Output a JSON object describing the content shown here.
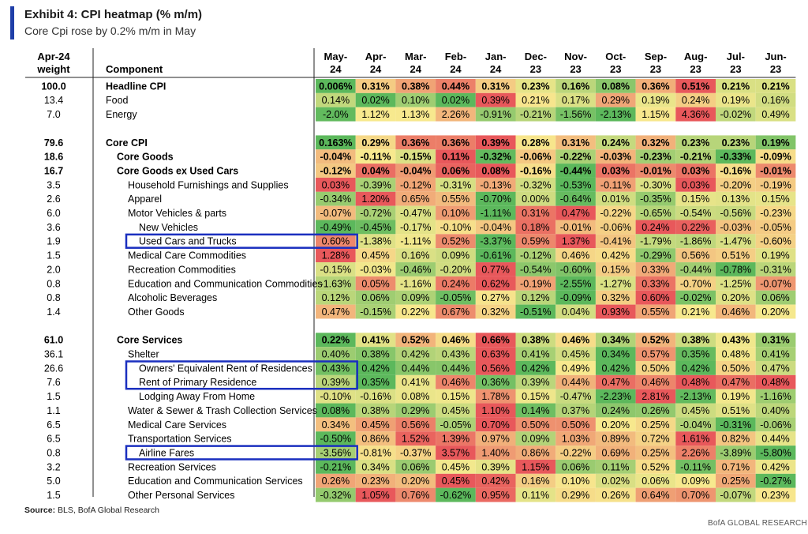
{
  "title": "Exhibit 4: CPI heatmap (% m/m)",
  "subtitle": "Core Cpi rose by 0.2% m/m in May",
  "source_label": "Source:",
  "source_text": "BLS, BofA Global Research",
  "footer": "BofA GLOBAL RESEARCH",
  "headers": {
    "weight_line1": "Apr-24",
    "weight_line2": "weight",
    "component": "Component",
    "months": [
      [
        "May-",
        "24"
      ],
      [
        "Apr-",
        "24"
      ],
      [
        "Mar-",
        "24"
      ],
      [
        "Feb-",
        "24"
      ],
      [
        "Jan-",
        "24"
      ],
      [
        "Dec-",
        "23"
      ],
      [
        "Nov-",
        "23"
      ],
      [
        "Oct-",
        "23"
      ],
      [
        "Sep-",
        "23"
      ],
      [
        "Aug-",
        "23"
      ],
      [
        "Jul-",
        "23"
      ],
      [
        "Jun-",
        "23"
      ]
    ]
  },
  "colors": {
    "low": "#5cb85c",
    "mid": "#f7e98e",
    "high": "#e8585b",
    "highlight_box": "#1a2fbf"
  },
  "chart_data": {
    "type": "heatmap",
    "title": "Exhibit 4: CPI heatmap (% m/m)",
    "subtitle": "Core Cpi rose by 0.2% m/m in May",
    "x": [
      "May-24",
      "Apr-24",
      "Mar-24",
      "Feb-24",
      "Jan-24",
      "Dec-23",
      "Nov-23",
      "Oct-23",
      "Sep-23",
      "Aug-23",
      "Jul-23",
      "Jun-23"
    ],
    "rows": [
      {
        "weight": "100.0",
        "name": "Headline CPI",
        "level": 0,
        "bold": true,
        "values": [
          "0.006%",
          "0.31%",
          "0.38%",
          "0.44%",
          "0.31%",
          "0.23%",
          "0.16%",
          "0.08%",
          "0.36%",
          "0.51%",
          "0.21%",
          "0.21%"
        ]
      },
      {
        "weight": "13.4",
        "name": "Food",
        "level": 0,
        "bold": false,
        "values": [
          "0.14%",
          "0.02%",
          "0.10%",
          "0.02%",
          "0.39%",
          "0.21%",
          "0.17%",
          "0.29%",
          "0.19%",
          "0.24%",
          "0.19%",
          "0.16%"
        ]
      },
      {
        "weight": "7.0",
        "name": "Energy",
        "level": 0,
        "bold": false,
        "values": [
          "-2.0%",
          "1.12%",
          "1.13%",
          "2.26%",
          "-0.91%",
          "-0.21%",
          "-1.56%",
          "-2.13%",
          "1.15%",
          "4.36%",
          "-0.02%",
          "0.49%"
        ]
      },
      {
        "gap": true
      },
      {
        "weight": "79.6",
        "name": "Core CPI",
        "level": 0,
        "bold": true,
        "values": [
          "0.163%",
          "0.29%",
          "0.36%",
          "0.36%",
          "0.39%",
          "0.28%",
          "0.31%",
          "0.24%",
          "0.32%",
          "0.23%",
          "0.23%",
          "0.19%"
        ]
      },
      {
        "weight": "18.6",
        "name": "Core Goods",
        "level": 1,
        "bold": true,
        "values": [
          "-0.04%",
          "-0.11%",
          "-0.15%",
          "0.11%",
          "-0.32%",
          "-0.06%",
          "-0.22%",
          "-0.03%",
          "-0.23%",
          "-0.21%",
          "-0.33%",
          "-0.09%"
        ]
      },
      {
        "weight": "16.7",
        "name": "Core Goods ex Used Cars",
        "level": 1,
        "bold": true,
        "values": [
          "-0.12%",
          "0.04%",
          "-0.04%",
          "0.06%",
          "0.08%",
          "-0.16%",
          "-0.44%",
          "0.03%",
          "-0.01%",
          "0.03%",
          "-0.16%",
          "-0.01%"
        ]
      },
      {
        "weight": "3.5",
        "name": "Household Furnishings and Supplies",
        "level": 2,
        "bold": false,
        "values": [
          "0.03%",
          "-0.39%",
          "-0.12%",
          "-0.31%",
          "-0.13%",
          "-0.32%",
          "-0.53%",
          "-0.11%",
          "-0.30%",
          "0.03%",
          "-0.20%",
          "-0.19%"
        ]
      },
      {
        "weight": "2.6",
        "name": "Apparel",
        "level": 2,
        "bold": false,
        "values": [
          "-0.34%",
          "1.20%",
          "0.65%",
          "0.55%",
          "-0.70%",
          "0.00%",
          "-0.64%",
          "0.01%",
          "-0.35%",
          "0.15%",
          "0.13%",
          "0.15%"
        ]
      },
      {
        "weight": "6.0",
        "name": "Motor Vehicles & parts",
        "level": 2,
        "bold": false,
        "values": [
          "-0.07%",
          "-0.72%",
          "-0.47%",
          "0.10%",
          "-1.11%",
          "0.31%",
          "0.47%",
          "-0.22%",
          "-0.65%",
          "-0.54%",
          "-0.56%",
          "-0.23%"
        ]
      },
      {
        "weight": "3.6",
        "name": "New Vehicles",
        "level": 3,
        "bold": false,
        "values": [
          "-0.49%",
          "-0.45%",
          "-0.17%",
          "-0.10%",
          "-0.04%",
          "0.18%",
          "-0.01%",
          "-0.06%",
          "0.24%",
          "0.22%",
          "-0.03%",
          "-0.05%"
        ]
      },
      {
        "weight": "1.9",
        "name": "Used Cars and Trucks",
        "level": 3,
        "bold": false,
        "boxed": true,
        "values": [
          "0.60%",
          "-1.38%",
          "-1.11%",
          "0.52%",
          "-3.37%",
          "0.59%",
          "1.37%",
          "-0.41%",
          "-1.79%",
          "-1.86%",
          "-1.47%",
          "-0.60%"
        ]
      },
      {
        "weight": "1.5",
        "name": "Medical Care Commodities",
        "level": 2,
        "bold": false,
        "values": [
          "1.28%",
          "0.45%",
          "0.16%",
          "0.09%",
          "-0.61%",
          "-0.12%",
          "0.46%",
          "0.42%",
          "-0.29%",
          "0.56%",
          "0.51%",
          "0.19%"
        ]
      },
      {
        "weight": "2.0",
        "name": "Recreation Commodities",
        "level": 2,
        "bold": false,
        "values": [
          "-0.15%",
          "-0.03%",
          "-0.46%",
          "-0.20%",
          "0.77%",
          "-0.54%",
          "-0.60%",
          "0.15%",
          "0.33%",
          "-0.44%",
          "-0.78%",
          "-0.31%"
        ]
      },
      {
        "weight": "0.8",
        "name": "Education and Communication Commodities",
        "level": 2,
        "bold": false,
        "values": [
          "-1.63%",
          "0.05%",
          "-1.16%",
          "0.24%",
          "0.62%",
          "-0.19%",
          "-2.55%",
          "-1.27%",
          "0.33%",
          "-0.70%",
          "-1.25%",
          "-0.07%"
        ]
      },
      {
        "weight": "0.8",
        "name": "Alcoholic Beverages",
        "level": 2,
        "bold": false,
        "values": [
          "0.12%",
          "0.06%",
          "0.09%",
          "-0.05%",
          "0.27%",
          "0.12%",
          "-0.09%",
          "0.32%",
          "0.60%",
          "-0.02%",
          "0.20%",
          "0.06%"
        ]
      },
      {
        "weight": "1.4",
        "name": "Other Goods",
        "level": 2,
        "bold": false,
        "values": [
          "0.47%",
          "-0.15%",
          "0.22%",
          "0.67%",
          "0.32%",
          "-0.51%",
          "0.04%",
          "0.93%",
          "0.55%",
          "0.21%",
          "0.46%",
          "0.20%"
        ]
      },
      {
        "gap": true
      },
      {
        "weight": "61.0",
        "name": "Core Services",
        "level": 1,
        "bold": true,
        "values": [
          "0.22%",
          "0.41%",
          "0.52%",
          "0.46%",
          "0.66%",
          "0.38%",
          "0.46%",
          "0.34%",
          "0.52%",
          "0.38%",
          "0.43%",
          "0.31%"
        ]
      },
      {
        "weight": "36.1",
        "name": "Shelter",
        "level": 2,
        "bold": false,
        "values": [
          "0.40%",
          "0.38%",
          "0.42%",
          "0.43%",
          "0.63%",
          "0.41%",
          "0.45%",
          "0.34%",
          "0.57%",
          "0.35%",
          "0.48%",
          "0.41%"
        ]
      },
      {
        "weight": "26.6",
        "name": "Owners' Equivalent Rent of Residences",
        "level": 3,
        "bold": false,
        "boxed": true,
        "values": [
          "0.43%",
          "0.42%",
          "0.44%",
          "0.44%",
          "0.56%",
          "0.42%",
          "0.49%",
          "0.42%",
          "0.50%",
          "0.42%",
          "0.50%",
          "0.47%"
        ]
      },
      {
        "weight": "7.6",
        "name": "Rent of Primary Residence",
        "level": 3,
        "bold": false,
        "boxed": true,
        "values": [
          "0.39%",
          "0.35%",
          "0.41%",
          "0.46%",
          "0.36%",
          "0.39%",
          "0.44%",
          "0.47%",
          "0.46%",
          "0.48%",
          "0.47%",
          "0.48%"
        ]
      },
      {
        "weight": "1.5",
        "name": "Lodging Away From Home",
        "level": 3,
        "bold": false,
        "values": [
          "-0.10%",
          "-0.16%",
          "0.08%",
          "0.15%",
          "1.78%",
          "0.15%",
          "-0.47%",
          "-2.23%",
          "2.81%",
          "-2.13%",
          "0.19%",
          "-1.16%"
        ]
      },
      {
        "weight": "1.1",
        "name": "Water & Sewer & Trash Collection Services",
        "level": 2,
        "bold": false,
        "values": [
          "0.08%",
          "0.38%",
          "0.29%",
          "0.45%",
          "1.10%",
          "0.14%",
          "0.37%",
          "0.24%",
          "0.26%",
          "0.45%",
          "0.51%",
          "0.40%"
        ]
      },
      {
        "weight": "6.5",
        "name": "Medical Care Services",
        "level": 2,
        "bold": false,
        "values": [
          "0.34%",
          "0.45%",
          "0.56%",
          "-0.05%",
          "0.70%",
          "0.50%",
          "0.50%",
          "0.20%",
          "0.25%",
          "-0.04%",
          "-0.31%",
          "-0.06%"
        ]
      },
      {
        "weight": "6.5",
        "name": "Transportation Services",
        "level": 2,
        "bold": false,
        "values": [
          "-0.50%",
          "0.86%",
          "1.52%",
          "1.39%",
          "0.97%",
          "0.09%",
          "1.03%",
          "0.89%",
          "0.72%",
          "1.61%",
          "0.82%",
          "0.44%"
        ]
      },
      {
        "weight": "0.8",
        "name": "Airline Fares",
        "level": 3,
        "bold": false,
        "boxed": true,
        "values": [
          "-3.56%",
          "-0.81%",
          "-0.37%",
          "3.57%",
          "1.40%",
          "0.86%",
          "-0.22%",
          "0.69%",
          "0.25%",
          "2.26%",
          "-3.89%",
          "-5.80%"
        ]
      },
      {
        "weight": "3.2",
        "name": "Recreation Services",
        "level": 2,
        "bold": false,
        "values": [
          "-0.21%",
          "0.34%",
          "0.06%",
          "0.45%",
          "0.39%",
          "1.15%",
          "0.06%",
          "0.11%",
          "0.52%",
          "-0.11%",
          "0.71%",
          "0.42%"
        ]
      },
      {
        "weight": "5.0",
        "name": "Education and Communication Services",
        "level": 2,
        "bold": false,
        "values": [
          "0.26%",
          "0.23%",
          "0.20%",
          "0.45%",
          "0.42%",
          "0.16%",
          "0.10%",
          "0.02%",
          "0.06%",
          "0.09%",
          "0.25%",
          "-0.27%"
        ]
      },
      {
        "weight": "1.5",
        "name": "Other Personal Services",
        "level": 2,
        "bold": false,
        "values": [
          "-0.32%",
          "1.05%",
          "0.76%",
          "-0.62%",
          "0.95%",
          "0.11%",
          "0.29%",
          "0.26%",
          "0.64%",
          "0.70%",
          "-0.07%",
          "0.23%"
        ]
      }
    ]
  }
}
